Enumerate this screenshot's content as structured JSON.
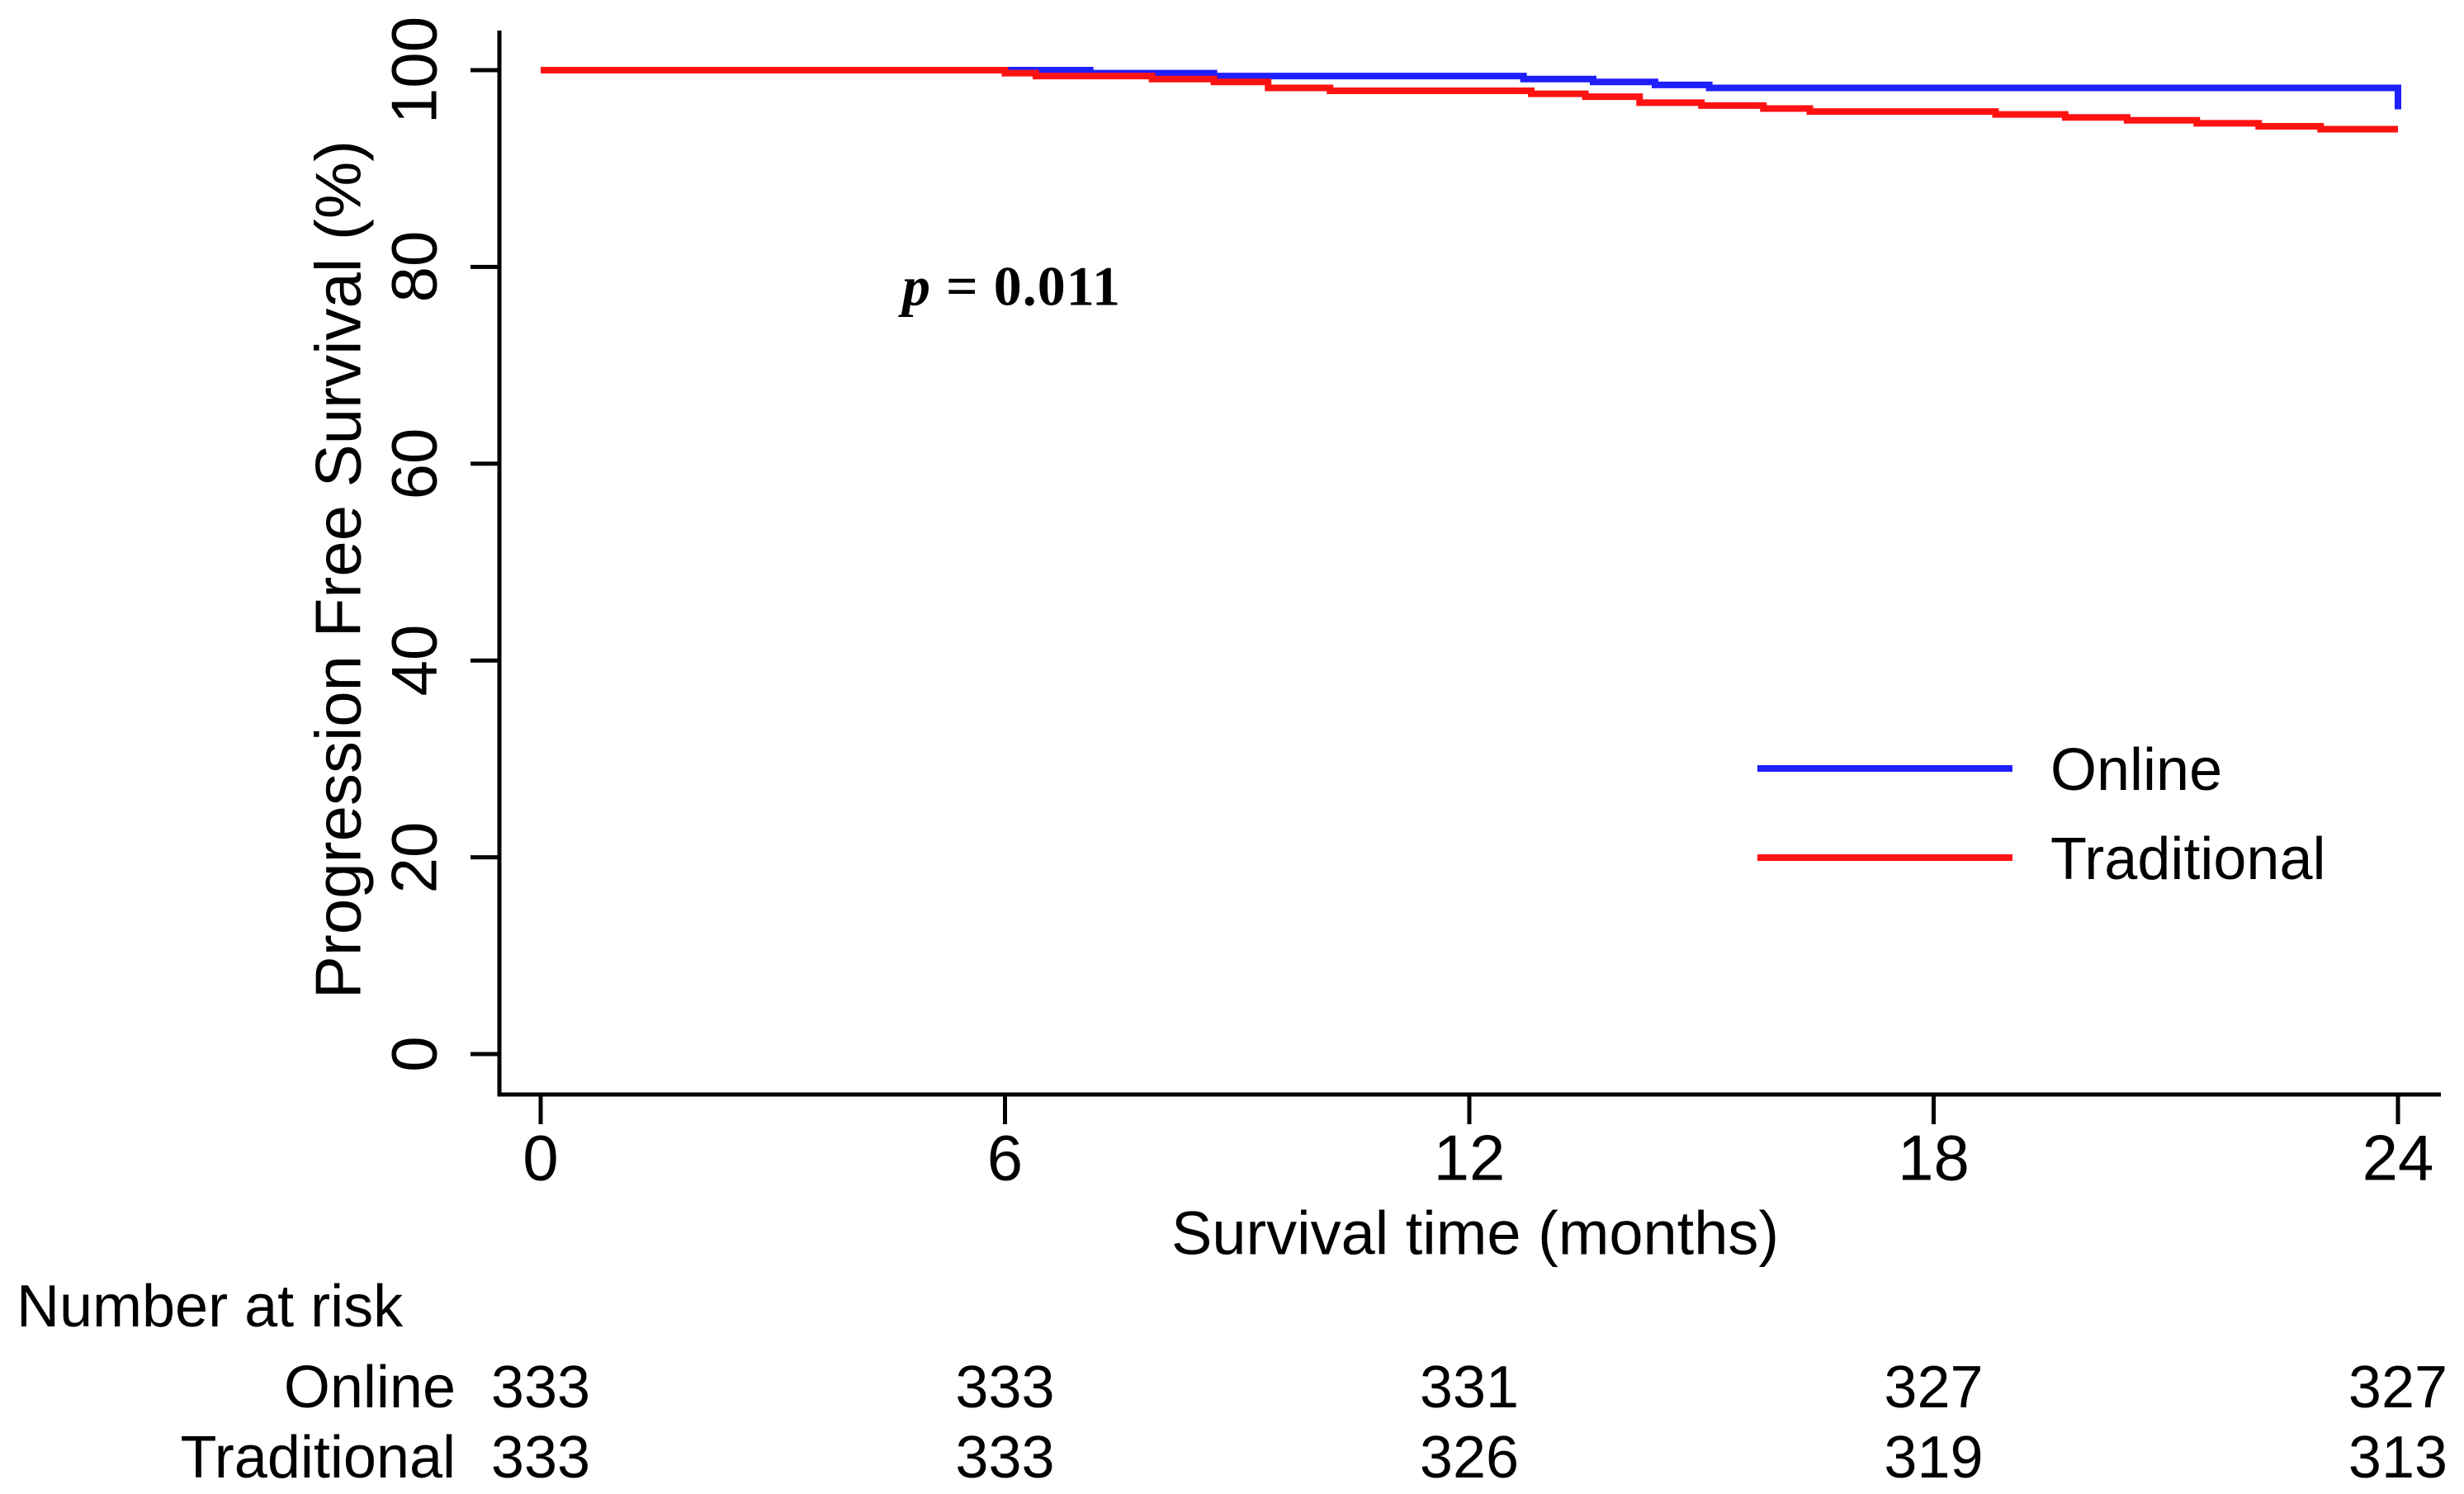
{
  "figure": {
    "background": "#ffffff",
    "text_color": "#000000",
    "axis_color": "#000000"
  },
  "chart_data": {
    "type": "line",
    "subtype": "kaplan-meier-step",
    "title": "",
    "xlabel": "Survival time (months)",
    "ylabel": "Progression Free Survival (%)",
    "xlim": [
      0,
      24
    ],
    "ylim": [
      0,
      100
    ],
    "x_ticks": [
      0,
      6,
      12,
      18,
      24
    ],
    "y_ticks": [
      100,
      80,
      60,
      40,
      20,
      0
    ],
    "grid": false,
    "legend_position": "right-middle",
    "annotation": {
      "p_symbol": "p",
      "equals_value": " = 0.011"
    },
    "series": [
      {
        "name": "Online",
        "color": "#1f1fff",
        "end_x": 24,
        "end_tick": true,
        "points": [
          [
            0,
            100
          ],
          [
            7.1,
            99.7
          ],
          [
            8.7,
            99.4
          ],
          [
            12.7,
            99.1
          ],
          [
            13.6,
            98.8
          ],
          [
            14.4,
            98.5
          ],
          [
            15.1,
            98.2
          ]
        ]
      },
      {
        "name": "Traditional",
        "color": "#ff1212",
        "end_x": 24,
        "end_tick": false,
        "points": [
          [
            0,
            100
          ],
          [
            6.0,
            99.7
          ],
          [
            6.4,
            99.4
          ],
          [
            7.9,
            99.1
          ],
          [
            8.7,
            98.8
          ],
          [
            9.4,
            98.2
          ],
          [
            10.2,
            97.9
          ],
          [
            12.8,
            97.6
          ],
          [
            13.5,
            97.3
          ],
          [
            14.2,
            96.7
          ],
          [
            15.0,
            96.4
          ],
          [
            15.8,
            96.1
          ],
          [
            16.4,
            95.8
          ],
          [
            18.8,
            95.5
          ],
          [
            19.7,
            95.2
          ],
          [
            20.5,
            94.9
          ],
          [
            21.4,
            94.6
          ],
          [
            22.2,
            94.3
          ],
          [
            23.0,
            94.0
          ]
        ]
      }
    ],
    "number_at_risk": {
      "header": "Number at risk",
      "time_points": [
        0,
        6,
        12,
        18,
        24
      ],
      "rows": [
        {
          "label": "Online",
          "values": [
            "333",
            "333",
            "331",
            "327",
            "327"
          ]
        },
        {
          "label": "Traditional",
          "values": [
            "333",
            "333",
            "326",
            "319",
            "313"
          ]
        }
      ]
    }
  }
}
